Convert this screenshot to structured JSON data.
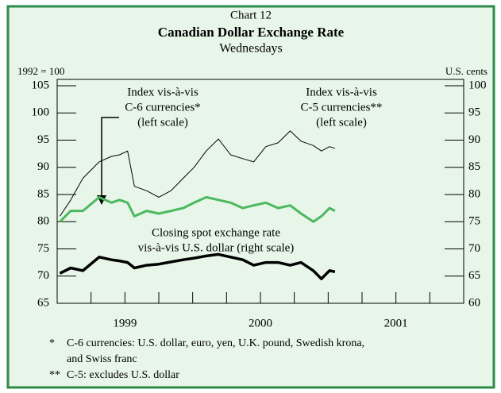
{
  "chart_data": {
    "type": "line",
    "kicker": "Chart 12",
    "title": "Canadian Dollar Exchange Rate",
    "subtitle": "Wednesdays",
    "ylabel": "1992 = 100",
    "y2label": "U.S. cents",
    "x": [
      1999.02,
      1999.1,
      1999.19,
      1999.31,
      1999.4,
      1999.46,
      1999.52,
      1999.57,
      1999.66,
      1999.75,
      1999.84,
      1999.93,
      2000.01,
      2000.1,
      2000.19,
      2000.28,
      2000.37,
      2000.45,
      2000.54,
      2000.63,
      2000.72,
      2000.8,
      2000.89,
      2000.95,
      2001.01,
      2001.05
    ],
    "xlim": [
      1999,
      2002
    ],
    "xticks": [
      {
        "value": 1999.5,
        "label": "1999"
      },
      {
        "value": 2000.5,
        "label": "2000"
      },
      {
        "value": 2001.5,
        "label": "2001"
      }
    ],
    "x_minor_ticks": [
      1999.25,
      1999.5,
      1999.75,
      2000,
      2000.25,
      2000.5,
      2000.75,
      2001,
      2001.25,
      2001.5,
      2001.75
    ],
    "ylim": [
      65,
      105
    ],
    "yticks": [
      65,
      70,
      75,
      80,
      85,
      90,
      95,
      100,
      105
    ],
    "y2lim": [
      60,
      100
    ],
    "y2ticks": [
      60,
      65,
      70,
      75,
      80,
      85,
      90,
      95,
      100
    ],
    "series": [
      {
        "name": "Index vis-à-vis C-5 currencies",
        "color": "#000000",
        "width": 1,
        "values": [
          81,
          84,
          88,
          91,
          92,
          92.3,
          93,
          86.5,
          85.7,
          84.5,
          85.7,
          88,
          90,
          93,
          95.2,
          92.3,
          91.6,
          91,
          93.8,
          94.5,
          96.7,
          94.8,
          94,
          93,
          93.8,
          93.5
        ]
      },
      {
        "name": "Index vis-à-vis C-6 currencies",
        "color": "#4cb860",
        "width": 3,
        "values": [
          80,
          82,
          82,
          84.5,
          83.5,
          84,
          83.5,
          81,
          82,
          81.5,
          82,
          82.5,
          83.5,
          84.5,
          84,
          83.5,
          82.5,
          83,
          83.5,
          82.5,
          83,
          81.5,
          80,
          81,
          82.5,
          82
        ]
      },
      {
        "name": "Closing spot exchange rate vis-à-vis U.S. dollar",
        "color": "#000000",
        "width": 3.5,
        "axis": "y2",
        "values": [
          65.5,
          66.5,
          66,
          68.5,
          68,
          67.8,
          67.5,
          66.5,
          67,
          67.2,
          67.6,
          68,
          68.3,
          68.7,
          69,
          68.5,
          68,
          67,
          67.5,
          67.5,
          67,
          67.5,
          66,
          64.5,
          66,
          65.8
        ]
      }
    ],
    "annotations": [
      {
        "lines": [
          "Index vis-à-vis",
          "C-6 currencies*",
          "(left scale)"
        ]
      },
      {
        "lines": [
          "Index vis-à-vis",
          "C-5 currencies**",
          "(left scale)"
        ]
      },
      {
        "lines": [
          "Closing spot exchange rate",
          "vis-à-vis U.S. dollar (right scale)"
        ]
      }
    ],
    "footnotes": [
      {
        "marker": "*",
        "lines": [
          "C-6 currencies: U.S. dollar, euro, yen, U.K. pound, Swedish krona,",
          "and Swiss franc"
        ]
      },
      {
        "marker": "**",
        "lines": [
          "C-5: excludes U.S. dollar"
        ]
      }
    ]
  }
}
